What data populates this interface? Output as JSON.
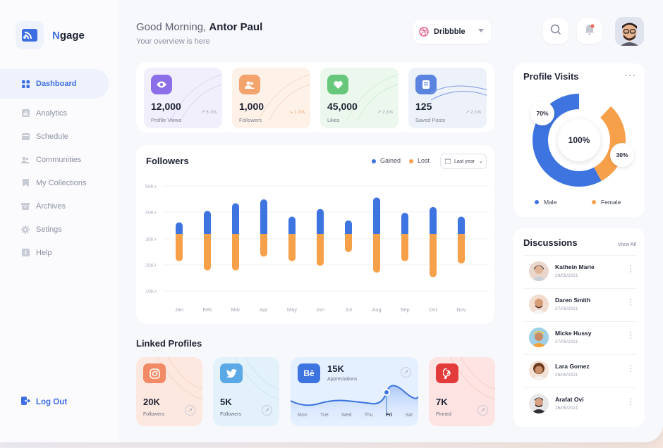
{
  "brand": {
    "name_first": "N",
    "name_rest": "gage"
  },
  "nav": {
    "items": [
      {
        "label": "Dashboard",
        "icon": "grid-icon",
        "active": true
      },
      {
        "label": "Analytics",
        "icon": "bar-chart-icon"
      },
      {
        "label": "Schedule",
        "icon": "calendar-icon"
      },
      {
        "label": "Communities",
        "icon": "users-icon"
      },
      {
        "label": "My Collections",
        "icon": "bookmark-icon"
      },
      {
        "label": "Archives",
        "icon": "archive-icon"
      },
      {
        "label": "Setings",
        "icon": "gear-icon"
      },
      {
        "label": "Help",
        "icon": "info-icon"
      }
    ],
    "logout": "Log Out"
  },
  "header": {
    "greeting": "Good Morning,",
    "user": "Antor Paul",
    "subtitle": "Your overview is here",
    "platform": "Dribbble"
  },
  "stats": [
    {
      "value": "12,000",
      "label": "Profile Views",
      "trend": "5.1%",
      "bg": "#f1effb",
      "accent": "#8b6ee8"
    },
    {
      "value": "1,000",
      "label": "Followers",
      "trend": "1.1%",
      "bg": "#fdf1e8",
      "accent": "#f3a36b"
    },
    {
      "value": "45,000",
      "label": "Likes",
      "trend": "2.1%",
      "bg": "#ecf8ee",
      "accent": "#67c77a"
    },
    {
      "value": "125",
      "label": "Saved Posts",
      "trend": "2.1%",
      "bg": "#edf1fa",
      "accent": "#5b84e0"
    }
  ],
  "followers": {
    "title": "Followers",
    "legend_gained": "Gained",
    "legend_lost": "Lost",
    "period": "Last year"
  },
  "chart_data": {
    "type": "bar",
    "categories": [
      "Jan",
      "Feb",
      "Mar",
      "Apr",
      "May",
      "Jun",
      "Jul",
      "Aug",
      "Sep",
      "Oct",
      "Nov"
    ],
    "y_ticks": [
      "50K+",
      "40K+",
      "30K+",
      "20K+",
      "10K+"
    ],
    "ylim": [
      0,
      50000
    ],
    "series": [
      {
        "name": "Gained",
        "color": "#3d74e0",
        "values": [
          6000,
          12000,
          16000,
          18000,
          9000,
          13000,
          7000,
          19000,
          11000,
          14000,
          9000
        ]
      },
      {
        "name": "Lost",
        "color": "#f7a04a",
        "values": [
          12000,
          16000,
          16000,
          10000,
          12000,
          14000,
          8000,
          17000,
          12000,
          19000,
          13000
        ]
      }
    ]
  },
  "linked": {
    "title": "Linked Profiles",
    "instagram": {
      "value": "20K",
      "label": "Followers"
    },
    "twitter": {
      "value": "5K",
      "label": "Followers"
    },
    "behance": {
      "value": "15K",
      "label": "Appreciations",
      "days": [
        "Mon",
        "Tue",
        "Wed",
        "Thu",
        "Fri",
        "Sat"
      ],
      "active_day": "Fri"
    },
    "pinterest": {
      "value": "7K",
      "label": "Pinned"
    }
  },
  "visits": {
    "title": "Profile Visits",
    "center": "100%",
    "male_pct": "70%",
    "female_pct": "30%",
    "male_label": "Male",
    "female_label": "Female",
    "male_share": 0.7,
    "male_color": "#3d74e0",
    "female_color": "#f7a04a"
  },
  "discussions": {
    "title": "Discussions",
    "view_all": "View All",
    "people": [
      {
        "name": "Kathein Marie",
        "date": "28/05/2021",
        "color": "#e9d6cc"
      },
      {
        "name": "Daren Smith",
        "date": "27/05/2021",
        "color": "#f2dccf"
      },
      {
        "name": "Micke Hussy",
        "date": "27/05/2021",
        "color": "#cfe6f3"
      },
      {
        "name": "Lara Gomez",
        "date": "26/05/2021",
        "color": "#f3e2d6"
      },
      {
        "name": "Arafat Ovi",
        "date": "26/05/2021",
        "color": "#e7e7ea"
      }
    ]
  }
}
